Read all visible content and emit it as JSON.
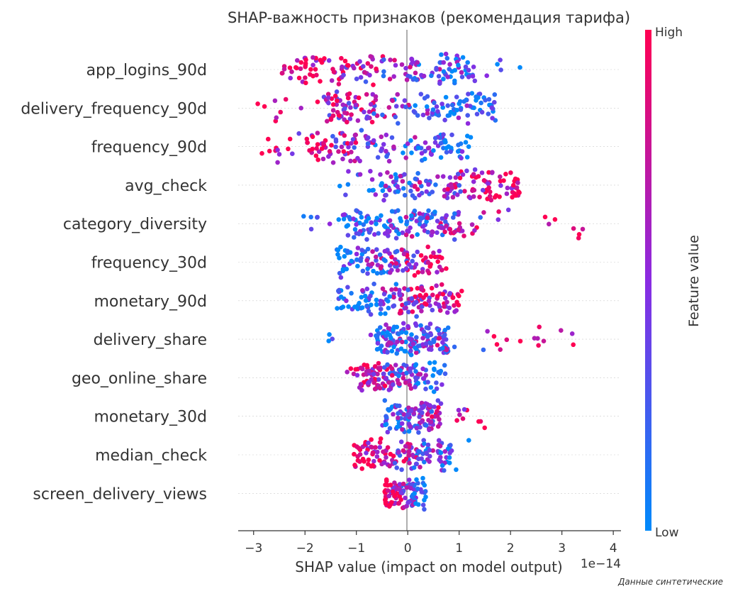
{
  "chart_data": {
    "type": "scatter",
    "title": "SHAP-важность признаков (рекомендация тарифа)",
    "xlabel": "SHAP value (impact on model output)",
    "x_offset_label": "1e−14",
    "xlim": [
      -3.3,
      4.15
    ],
    "x_ticks": [
      -3,
      -2,
      -1,
      0,
      1,
      2,
      3,
      4
    ],
    "x_tick_labels": [
      "−3",
      "−2",
      "−1",
      "0",
      "1",
      "2",
      "3",
      "4"
    ],
    "x_scale": "1e-14",
    "features": [
      {
        "name": "app_logins_90d",
        "lo": -2.5,
        "hi": 2.3,
        "core": [
          -2.5,
          1.3
        ],
        "high_side": "left",
        "n": 160
      },
      {
        "name": "delivery_frequency_90d",
        "lo": -2.95,
        "hi": 1.9,
        "core": [
          -1.6,
          1.75
        ],
        "high_side": "left",
        "n": 170
      },
      {
        "name": "frequency_90d",
        "lo": -2.9,
        "hi": 1.4,
        "core": [
          -2.0,
          1.2
        ],
        "high_side": "left",
        "n": 150
      },
      {
        "name": "avg_check",
        "lo": -1.5,
        "hi": 2.25,
        "core": [
          -0.7,
          2.2
        ],
        "high_side": "right",
        "n": 150
      },
      {
        "name": "category_diversity",
        "lo": -2.25,
        "hi": 3.8,
        "core": [
          -1.25,
          1.1
        ],
        "high_side": "right",
        "n": 170
      },
      {
        "name": "frequency_30d",
        "lo": -1.4,
        "hi": 0.75,
        "core": [
          -1.4,
          0.75
        ],
        "high_side": "right",
        "n": 120
      },
      {
        "name": "monetary_90d",
        "lo": -1.45,
        "hi": 1.15,
        "core": [
          -1.35,
          0.95
        ],
        "high_side": "right",
        "n": 150
      },
      {
        "name": "delivery_share",
        "lo": -1.6,
        "hi": 3.3,
        "core": [
          -0.6,
          0.8
        ],
        "high_side": "right",
        "n": 170
      },
      {
        "name": "geo_online_share",
        "lo": -1.2,
        "hi": 0.75,
        "core": [
          -1.0,
          0.65
        ],
        "high_side": "left",
        "n": 140
      },
      {
        "name": "monetary_30d",
        "lo": -0.75,
        "hi": 1.5,
        "core": [
          -0.45,
          0.65
        ],
        "high_side": "right",
        "n": 120
      },
      {
        "name": "median_check",
        "lo": -1.15,
        "hi": 1.3,
        "core": [
          -1.05,
          0.85
        ],
        "high_side": "left",
        "n": 140
      },
      {
        "name": "screen_delivery_views",
        "lo": -0.45,
        "hi": 0.35,
        "core": [
          -0.45,
          0.35
        ],
        "high_side": "left",
        "n": 110
      }
    ],
    "colorbar": {
      "label": "Feature value",
      "high_label": "High",
      "low_label": "Low"
    },
    "colors": {
      "low": "#008afb",
      "mid": "#8a2be2",
      "high": "#ff0052"
    },
    "grid": false,
    "zero_line": true
  },
  "footnote": "Данные синтетические"
}
